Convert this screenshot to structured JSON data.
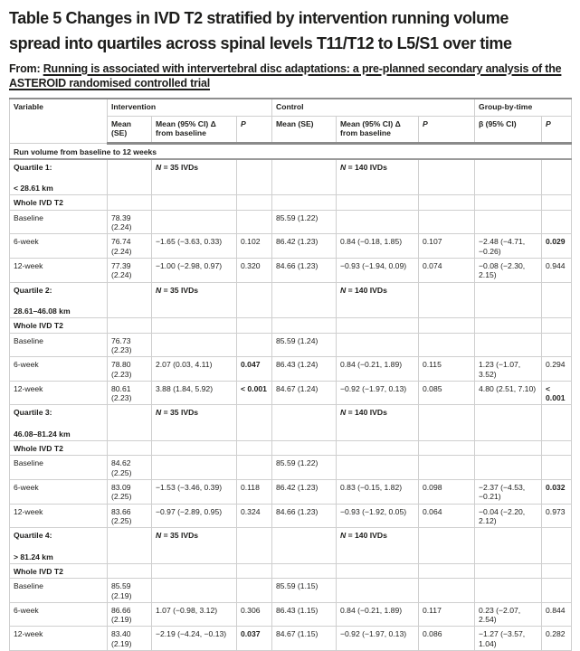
{
  "title_lines": [
    "Table 5 Changes in IVD T2 stratified by intervention running volume",
    "spread into quartiles across spinal levels T11/T12 to L5/S1 over time"
  ],
  "source": {
    "prefix": "From: ",
    "link": "Running is associated with intervertebral disc adaptations: a pre-planned secondary analysis of the ASTEROID randomised controlled trial"
  },
  "colors": {
    "text": "#1d1d1b",
    "border_light": "#cfcfcf",
    "border_dark": "#8a8a8a",
    "background": "#ffffff"
  },
  "table": {
    "header": {
      "variable": "Variable",
      "groups": [
        "Intervention",
        "Control",
        "Group-by-time"
      ],
      "sub": [
        "Mean (SE)",
        "Mean (95% CI) Δ from baseline",
        "P",
        "Mean (SE)",
        "Mean (95% CI) Δ from baseline",
        "P",
        "β (95% CI)",
        "P"
      ]
    },
    "rows": [
      {
        "type": "section",
        "label": "Run volume from baseline to 12 weeks"
      },
      {
        "type": "quartile",
        "label_lines": [
          "Quartile 1:",
          "< 28.61 km"
        ],
        "n_intervention": "N = 35 IVDs",
        "n_control": "N = 140 IVDs"
      },
      {
        "type": "subhead",
        "label": "Whole IVD T2"
      },
      {
        "type": "data",
        "label": "Baseline",
        "cells": [
          "78.39 (2.24)",
          "",
          "",
          "85.59 (1.22)",
          "",
          "",
          "",
          ""
        ],
        "bold": []
      },
      {
        "type": "data",
        "label": "6-week",
        "cells": [
          "76.74 (2.24)",
          "−1.65 (−3.63, 0.33)",
          "0.102",
          "86.42 (1.23)",
          "0.84 (−0.18, 1.85)",
          "0.107",
          "−2.48 (−4.71, −0.26)",
          "0.029"
        ],
        "bold": [
          7
        ]
      },
      {
        "type": "data",
        "label": "12-week",
        "cells": [
          "77.39 (2.24)",
          "−1.00 (−2.98, 0.97)",
          "0.320",
          "84.66 (1.23)",
          "−0.93 (−1.94, 0.09)",
          "0.074",
          "−0.08 (−2.30, 2.15)",
          "0.944"
        ],
        "bold": []
      },
      {
        "type": "quartile",
        "label_lines": [
          "Quartile 2:",
          "28.61–46.08 km"
        ],
        "n_intervention": "N = 35 IVDs",
        "n_control": "N = 140 IVDs"
      },
      {
        "type": "subhead",
        "label": "Whole IVD T2"
      },
      {
        "type": "data",
        "label": "Baseline",
        "cells": [
          "76.73 (2.23)",
          "",
          "",
          "85.59 (1.24)",
          "",
          "",
          "",
          ""
        ],
        "bold": []
      },
      {
        "type": "data",
        "label": "6-week",
        "cells": [
          "78.80 (2.23)",
          "2.07 (0.03, 4.11)",
          "0.047",
          "86.43 (1.24)",
          "0.84 (−0.21, 1.89)",
          "0.115",
          "1.23 (−1.07, 3.52)",
          "0.294"
        ],
        "bold": [
          2
        ]
      },
      {
        "type": "data",
        "label": "12-week",
        "cells": [
          "80.61 (2.23)",
          "3.88 (1.84, 5.92)",
          "< 0.001",
          "84.67 (1.24)",
          "−0.92 (−1.97, 0.13)",
          "0.085",
          "4.80 (2.51, 7.10)",
          "< 0.001"
        ],
        "bold": [
          2,
          7
        ]
      },
      {
        "type": "quartile",
        "label_lines": [
          "Quartile 3:",
          "46.08–81.24 km"
        ],
        "n_intervention": "N = 35 IVDs",
        "n_control": "N = 140 IVDs"
      },
      {
        "type": "subhead",
        "label": "Whole IVD T2"
      },
      {
        "type": "data",
        "label": "Baseline",
        "cells": [
          "84.62 (2.25)",
          "",
          "",
          "85.59 (1.22)",
          "",
          "",
          "",
          ""
        ],
        "bold": []
      },
      {
        "type": "data",
        "label": "6-week",
        "cells": [
          "83.09 (2.25)",
          "−1.53 (−3.46, 0.39)",
          "0.118",
          "86.42 (1.23)",
          "0.83 (−0.15, 1.82)",
          "0.098",
          "−2.37 (−4.53, −0.21)",
          "0.032"
        ],
        "bold": [
          7
        ]
      },
      {
        "type": "data",
        "label": "12-week",
        "cells": [
          "83.66 (2.25)",
          "−0.97 (−2.89, 0.95)",
          "0.324",
          "84.66 (1.23)",
          "−0.93 (−1.92, 0.05)",
          "0.064",
          "−0.04 (−2.20, 2.12)",
          "0.973"
        ],
        "bold": []
      },
      {
        "type": "quartile",
        "label_lines": [
          "Quartile 4:",
          "> 81.24 km"
        ],
        "n_intervention": "N = 35 IVDs",
        "n_control": "N = 140 IVDs"
      },
      {
        "type": "subhead",
        "label": "Whole IVD T2"
      },
      {
        "type": "data",
        "label": "Baseline",
        "cells": [
          "85.59 (2.19)",
          "",
          "",
          "85.59 (1.15)",
          "",
          "",
          "",
          ""
        ],
        "bold": []
      },
      {
        "type": "data",
        "label": "6-week",
        "cells": [
          "86.66 (2.19)",
          "1.07 (−0.98, 3.12)",
          "0.306",
          "86.43 (1.15)",
          "0.84 (−0.21, 1.89)",
          "0.117",
          "0.23 (−2.07, 2.54)",
          "0.844"
        ],
        "bold": []
      },
      {
        "type": "data",
        "label": "12-week",
        "cells": [
          "83.40 (2.19)",
          "−2.19 (−4.24, −0.13)",
          "0.037",
          "84.67 (1.15)",
          "−0.92 (−1.97, 0.13)",
          "0.086",
          "−1.27 (−3.57, 1.04)",
          "0.282"
        ],
        "bold": [
          2
        ]
      }
    ]
  }
}
